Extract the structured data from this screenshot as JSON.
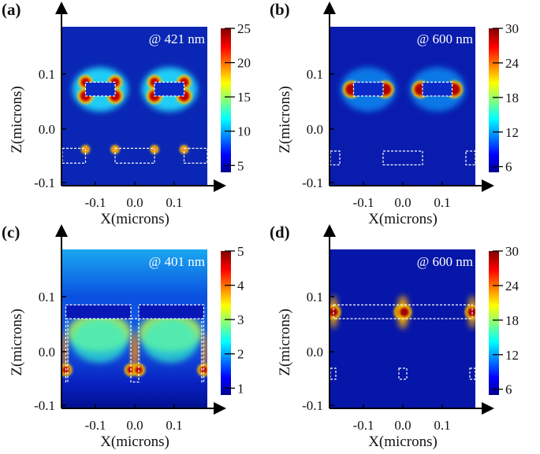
{
  "chart_data": [
    {
      "type": "heatmap",
      "panel_label": "(a)",
      "annotation": "@ 421 nm",
      "xlabel": "X(microns)",
      "ylabel": "Z(microns)",
      "xticks": [
        "-0.1",
        "0.0",
        "0.1"
      ],
      "yticks": [
        "0.1",
        "0.0",
        "-0.1"
      ],
      "colorbar": {
        "min": 4,
        "max": 25,
        "ticks": [
          "5",
          "10",
          "15",
          "20",
          "25"
        ]
      }
    },
    {
      "type": "heatmap",
      "panel_label": "(b)",
      "annotation": "@ 600 nm",
      "xlabel": "X(microns)",
      "ylabel": "Z(microns)",
      "xticks": [
        "-0.1",
        "0.0",
        "0.1"
      ],
      "yticks": [
        "0.1",
        "0.0",
        "-0.1"
      ],
      "colorbar": {
        "min": 5,
        "max": 30,
        "ticks": [
          "6",
          "12",
          "18",
          "24",
          "30"
        ]
      }
    },
    {
      "type": "heatmap",
      "panel_label": "(c)",
      "annotation": "@ 401 nm",
      "xlabel": "X(microns)",
      "ylabel": "Z(microns)",
      "xticks": [
        "-0.1",
        "0.0",
        "0.1"
      ],
      "yticks": [
        "0.1",
        "0.0",
        "-0.1"
      ],
      "colorbar": {
        "min": 0.8,
        "max": 5,
        "ticks": [
          "1",
          "2",
          "3",
          "4",
          "5"
        ]
      }
    },
    {
      "type": "heatmap",
      "panel_label": "(d)",
      "annotation": "@ 600 nm",
      "xlabel": "X(microns)",
      "ylabel": "Z(microns)",
      "xticks": [
        "-0.1",
        "0.0",
        "0.1"
      ],
      "yticks": [
        "0.1",
        "0.0",
        "-0.1"
      ],
      "colorbar": {
        "min": 5,
        "max": 30,
        "ticks": [
          "6",
          "12",
          "18",
          "24",
          "30"
        ]
      }
    }
  ],
  "colormap": [
    "#00008f",
    "#0000ff",
    "#00ffff",
    "#ffff00",
    "#ff0000",
    "#800000"
  ]
}
